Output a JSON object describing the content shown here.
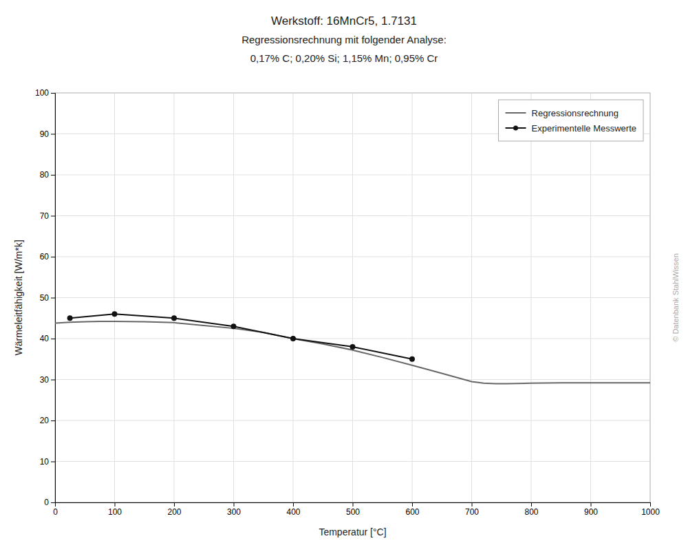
{
  "chart_data": {
    "type": "line",
    "title": "Werkstoff: 16MnCr5, 1.7131",
    "subtitle": [
      "Regressionsrechnung mit folgender Analyse:",
      "0,17% C; 0,20% Si; 1,15% Mn; 0,95% Cr"
    ],
    "x_label": "Temperatur [°C]",
    "y_label": "Wärmeleitfähigkeit [W/m*k]",
    "annotations": [
      "© Datenbank StahlWissen"
    ],
    "xlim": [
      0,
      1000
    ],
    "ylim": [
      0,
      100
    ],
    "xticks": [
      0,
      100,
      200,
      300,
      400,
      500,
      600,
      700,
      800,
      900,
      1000
    ],
    "yticks": [
      0,
      10,
      20,
      30,
      40,
      50,
      60,
      70,
      80,
      90,
      100
    ],
    "grid": true,
    "legend": "upper right",
    "series": [
      {
        "name": "Regressionsrechnung",
        "color": "#666666",
        "line_style": "solid",
        "x": [
          0,
          25,
          50,
          75,
          100,
          150,
          200,
          250,
          300,
          350,
          400,
          450,
          500,
          550,
          600,
          650,
          700,
          720,
          740,
          760,
          800,
          850,
          900,
          950,
          1000
        ],
        "values": [
          43.8,
          44.0,
          44.1,
          44.2,
          44.2,
          44.1,
          43.9,
          43.2,
          42.5,
          41.5,
          40.0,
          38.7,
          37.2,
          35.4,
          33.5,
          31.5,
          29.5,
          29.1,
          29.0,
          29.0,
          29.1,
          29.2,
          29.2,
          29.2,
          29.2
        ]
      },
      {
        "name": "Experimentelle Messwerte",
        "color": "#111111",
        "line_style": "solid",
        "marker": "circle",
        "x": [
          25,
          100,
          200,
          300,
          400,
          500,
          600
        ],
        "values": [
          45.0,
          46.0,
          45.0,
          43.0,
          40.0,
          38.0,
          35.0
        ]
      }
    ]
  }
}
